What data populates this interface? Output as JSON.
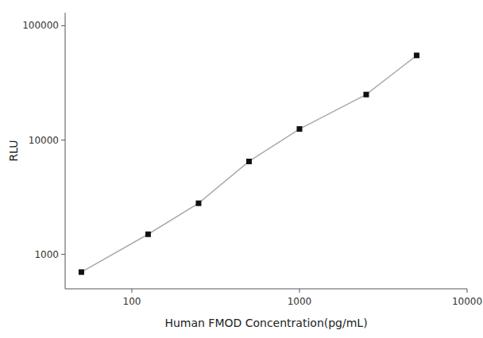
{
  "chart_data": {
    "type": "line",
    "xlabel": "Human FMOD Concentration(pg/mL)",
    "ylabel": "RLU",
    "x": [
      50,
      125,
      250,
      500,
      1000,
      2500,
      5000
    ],
    "values": [
      700,
      1500,
      2800,
      6500,
      12500,
      25000,
      55000
    ],
    "color": "#aaaaaa",
    "marker": "square",
    "log": true,
    "xlim": [
      40,
      10000
    ],
    "ylim": [
      500,
      130000
    ],
    "xticks": [
      100,
      1000,
      10000
    ],
    "yticks": [
      1000,
      10000,
      100000
    ],
    "grid": false
  }
}
